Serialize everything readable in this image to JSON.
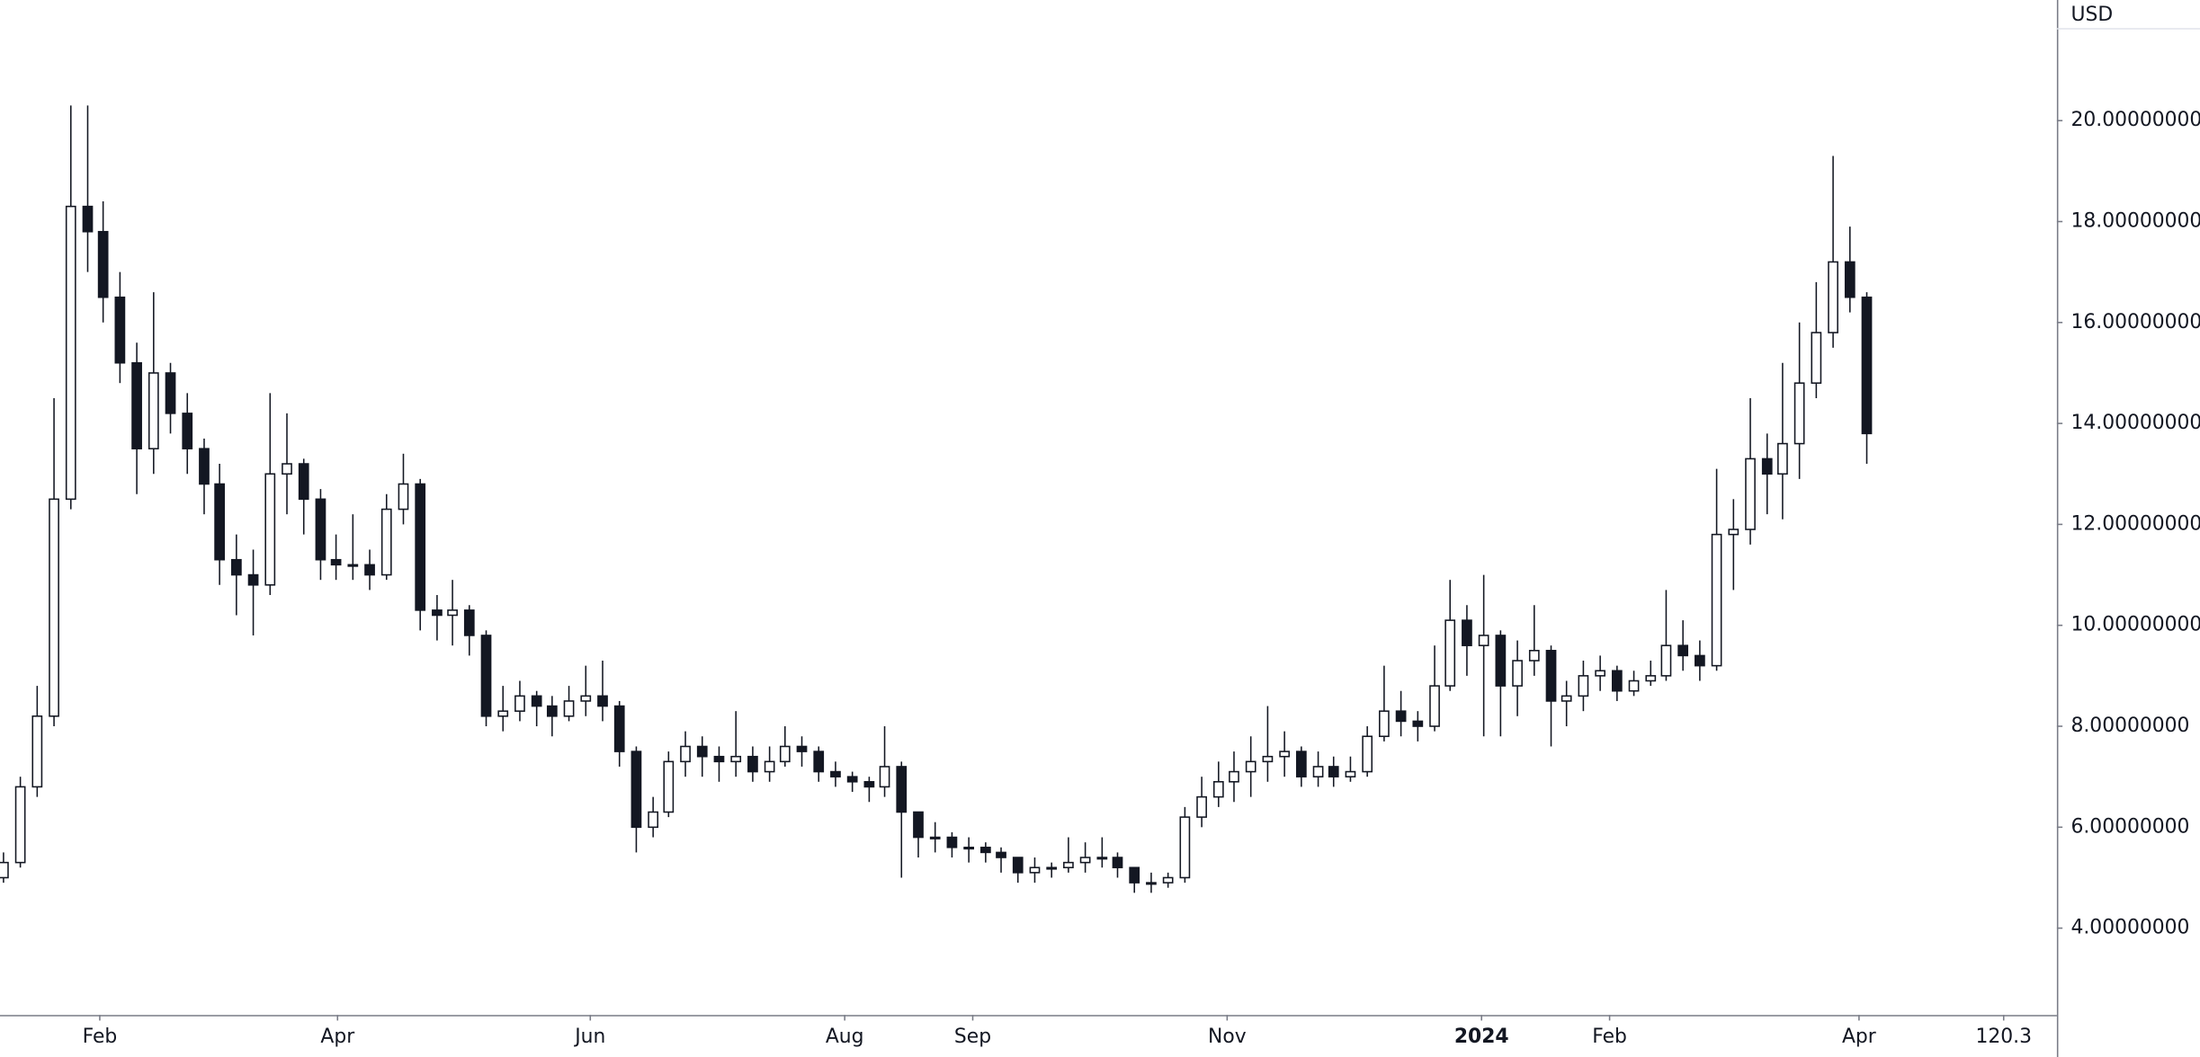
{
  "chart_data": {
    "type": "candlestick",
    "y_axis_unit": "USD",
    "open": [
      5.0,
      5.3,
      6.8,
      8.2,
      12.5,
      18.3,
      17.8,
      16.5,
      15.2,
      13.5,
      15.0,
      14.2,
      13.5,
      12.8,
      11.3,
      11.0,
      10.8,
      13.0,
      13.2,
      12.5,
      11.3,
      11.2,
      11.2,
      11.0,
      12.3,
      12.8,
      10.3,
      10.2,
      10.3,
      9.8,
      8.2,
      8.3,
      8.6,
      8.4,
      8.2,
      8.5,
      8.6,
      8.4,
      7.5,
      6.0,
      6.3,
      7.3,
      7.6,
      7.4,
      7.3,
      7.4,
      7.1,
      7.3,
      7.6,
      7.5,
      7.1,
      7.0,
      6.9,
      6.8,
      7.2,
      6.3,
      5.8,
      5.8,
      5.6,
      5.6,
      5.5,
      5.4,
      5.1,
      5.2,
      5.2,
      5.3,
      5.4,
      5.4,
      5.2,
      4.9,
      4.9,
      5.0,
      6.2,
      6.6,
      6.9,
      7.1,
      7.3,
      7.4,
      7.5,
      7.0,
      7.2,
      7.0,
      7.1,
      7.8,
      8.3,
      8.1,
      8.0,
      8.8,
      10.1,
      9.6,
      9.8,
      8.8,
      9.3,
      9.5,
      8.5,
      8.6,
      9.0,
      9.1,
      8.7,
      8.9,
      9.0,
      9.6,
      9.4,
      9.2,
      11.8,
      11.9,
      13.3,
      13.0,
      13.6,
      14.8,
      15.8,
      17.2,
      16.5
    ],
    "high": [
      5.5,
      7.0,
      8.8,
      14.5,
      20.3,
      20.3,
      18.4,
      17.0,
      15.6,
      16.6,
      15.2,
      14.6,
      13.7,
      13.2,
      11.8,
      11.5,
      14.6,
      14.2,
      13.3,
      12.7,
      11.8,
      12.2,
      11.5,
      12.6,
      13.4,
      12.9,
      10.6,
      10.9,
      10.4,
      9.9,
      8.8,
      8.9,
      8.7,
      8.6,
      8.8,
      9.2,
      9.3,
      8.5,
      7.6,
      6.6,
      7.5,
      7.9,
      7.8,
      7.6,
      8.3,
      7.6,
      7.6,
      8.0,
      7.8,
      7.6,
      7.3,
      7.1,
      7.0,
      8.0,
      7.3,
      6.3,
      6.1,
      5.9,
      5.8,
      5.7,
      5.6,
      5.4,
      5.4,
      5.3,
      5.8,
      5.7,
      5.8,
      5.5,
      5.2,
      5.1,
      5.1,
      6.4,
      7.0,
      7.3,
      7.5,
      7.8,
      8.4,
      7.9,
      7.6,
      7.5,
      7.4,
      7.4,
      8.0,
      9.2,
      8.7,
      8.3,
      9.6,
      10.9,
      10.4,
      11.0,
      9.9,
      9.7,
      10.4,
      9.6,
      8.9,
      9.3,
      9.4,
      9.2,
      9.1,
      9.3,
      10.7,
      10.1,
      9.7,
      13.1,
      12.5,
      14.5,
      13.8,
      15.2,
      16.0,
      16.8,
      19.3,
      17.9,
      16.6
    ],
    "low": [
      4.9,
      5.2,
      6.6,
      8.0,
      12.3,
      17.0,
      16.0,
      14.8,
      12.6,
      13.0,
      13.8,
      13.0,
      12.2,
      10.8,
      10.2,
      9.8,
      10.6,
      12.2,
      11.8,
      10.9,
      10.9,
      10.9,
      10.7,
      10.9,
      12.0,
      9.9,
      9.7,
      9.6,
      9.4,
      8.0,
      7.9,
      8.1,
      8.0,
      7.8,
      8.1,
      8.2,
      8.1,
      7.2,
      5.5,
      5.8,
      6.2,
      7.0,
      7.0,
      6.9,
      7.0,
      6.9,
      6.9,
      7.2,
      7.2,
      6.9,
      6.8,
      6.7,
      6.5,
      6.6,
      5.0,
      5.4,
      5.5,
      5.4,
      5.3,
      5.3,
      5.1,
      4.9,
      4.9,
      5.0,
      5.1,
      5.1,
      5.2,
      5.0,
      4.7,
      4.7,
      4.8,
      4.9,
      6.0,
      6.4,
      6.5,
      6.6,
      6.9,
      7.0,
      6.8,
      6.8,
      6.8,
      6.9,
      7.0,
      7.7,
      7.8,
      7.7,
      7.9,
      8.7,
      9.0,
      7.8,
      7.8,
      8.2,
      9.0,
      7.6,
      8.0,
      8.3,
      8.7,
      8.5,
      8.6,
      8.8,
      8.9,
      9.1,
      8.9,
      9.1,
      10.7,
      11.6,
      12.2,
      12.1,
      12.9,
      14.5,
      15.5,
      16.2,
      13.2
    ],
    "close": [
      5.3,
      6.8,
      8.2,
      12.5,
      18.3,
      17.8,
      16.5,
      15.2,
      13.5,
      15.0,
      14.2,
      13.5,
      12.8,
      11.3,
      11.0,
      10.8,
      13.0,
      13.2,
      12.5,
      11.3,
      11.2,
      11.2,
      11.0,
      12.3,
      12.8,
      10.3,
      10.2,
      10.3,
      9.8,
      8.2,
      8.3,
      8.6,
      8.4,
      8.2,
      8.5,
      8.6,
      8.4,
      7.5,
      6.0,
      6.3,
      7.3,
      7.6,
      7.4,
      7.3,
      7.4,
      7.1,
      7.3,
      7.6,
      7.5,
      7.1,
      7.0,
      6.9,
      6.8,
      7.2,
      6.3,
      5.8,
      5.8,
      5.6,
      5.6,
      5.5,
      5.4,
      5.1,
      5.2,
      5.2,
      5.3,
      5.4,
      5.4,
      5.2,
      4.9,
      4.9,
      5.0,
      6.2,
      6.6,
      6.9,
      7.1,
      7.3,
      7.4,
      7.5,
      7.0,
      7.2,
      7.0,
      7.1,
      7.8,
      8.3,
      8.1,
      8.0,
      8.8,
      10.1,
      9.6,
      9.8,
      8.8,
      9.3,
      9.5,
      8.5,
      8.6,
      9.0,
      9.1,
      8.7,
      8.9,
      9.0,
      9.6,
      9.4,
      9.2,
      11.8,
      11.9,
      13.3,
      13.0,
      13.6,
      14.8,
      15.8,
      17.2,
      16.5,
      13.8
    ],
    "up_color": "#ffffff",
    "down_color": "#131722",
    "edge_color": "#131722",
    "xlim": [
      -0.2,
      123.5
    ],
    "xticks": [
      {
        "value": 5.8,
        "label": "Feb"
      },
      {
        "value": 20.1,
        "label": "Apr"
      },
      {
        "value": 35.3,
        "label": "Jun"
      },
      {
        "value": 50.6,
        "label": "Aug"
      },
      {
        "value": 58.3,
        "label": "Sep"
      },
      {
        "value": 73.6,
        "label": "Nov"
      },
      {
        "value": 88.9,
        "label": "2024"
      },
      {
        "value": 96.6,
        "label": "Feb"
      },
      {
        "value": 111.6,
        "label": "Apr"
      },
      120.3
    ],
    "ylim": [
      2.28,
      22.39
    ],
    "yticks": [
      {
        "value": 4,
        "label": "4.00000000"
      },
      {
        "value": 6,
        "label": "6.00000000"
      },
      {
        "value": 8,
        "label": "8.00000000"
      },
      {
        "value": 10,
        "label": "10.00000000"
      },
      {
        "value": 12,
        "label": "12.00000000"
      },
      {
        "value": 14,
        "label": "14.00000000"
      },
      {
        "value": 16,
        "label": "16.00000000"
      },
      {
        "value": 18,
        "label": "18.00000000"
      },
      {
        "value": 20,
        "label": "20.00000000"
      }
    ]
  }
}
